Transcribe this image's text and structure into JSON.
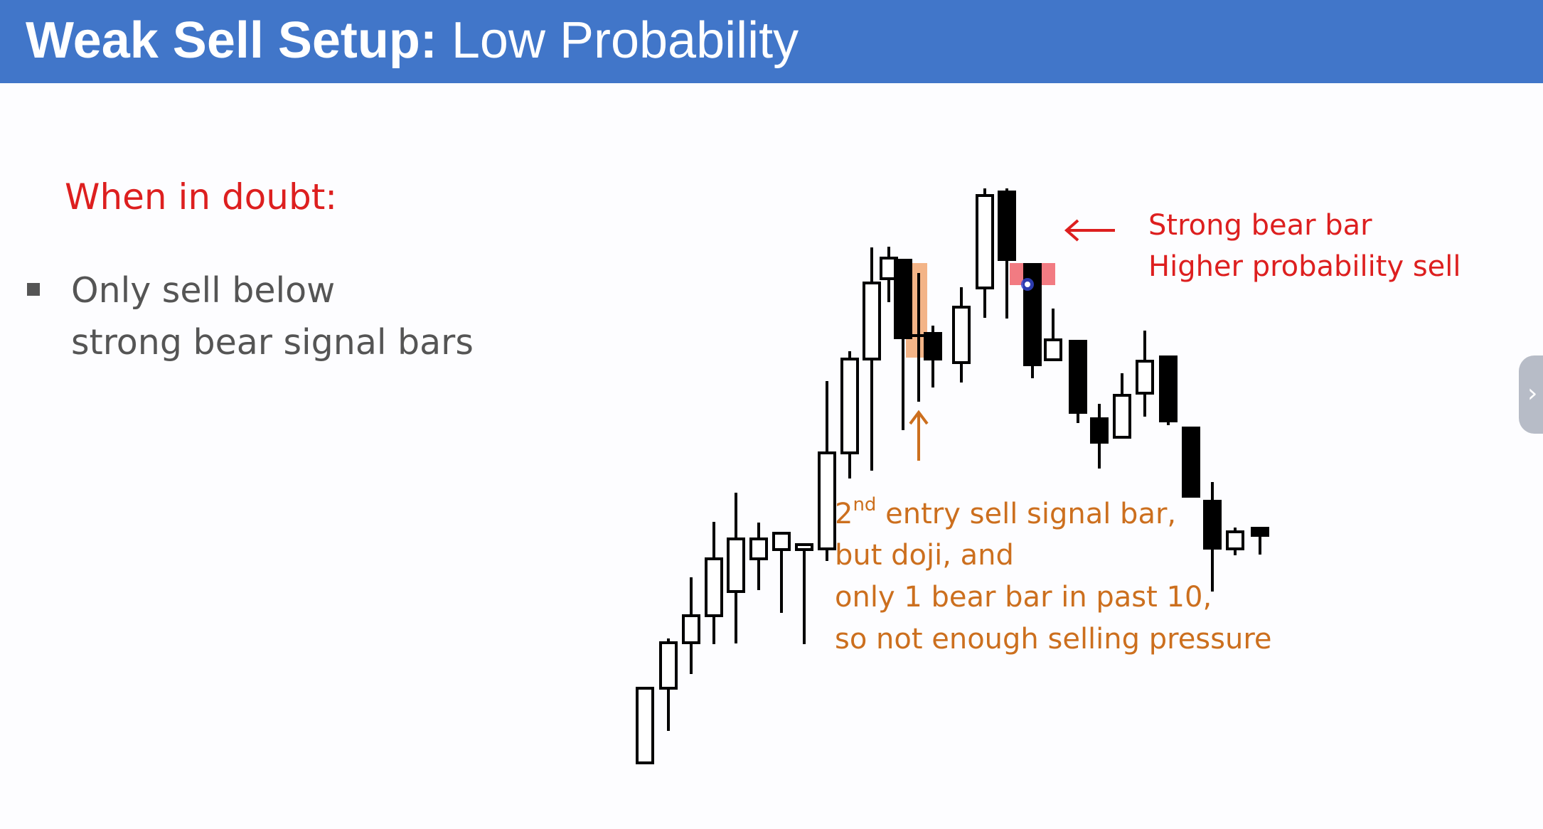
{
  "header": {
    "title_bold": "Weak Sell Setup:",
    "title_rest": " Low Probability"
  },
  "left_panel": {
    "heading": "When in doubt:",
    "bullet_lines": [
      "Only sell below",
      "strong bear signal bars"
    ]
  },
  "annotations": {
    "strong_bear_lines": [
      "Strong bear bar",
      "Higher probability sell"
    ],
    "second_entry_sup": "nd",
    "second_entry_lines": [
      "2",
      " entry sell signal bar,",
      "but doji, and",
      "only 1 bear bar in past 10,",
      "so not enough selling pressure"
    ]
  },
  "colors": {
    "header_bg": "#4176c9",
    "heading_red": "#dd1f1f",
    "annotation_orange": "#cc6f1e",
    "bar_color": "#000000",
    "signal_highlight": "#f3b487",
    "entry_highlight": "#f27b82"
  },
  "icons": {
    "side_tab": "chevron-right-icon",
    "arrow_red": "arrow-left-icon",
    "arrow_orange": "arrow-up-icon",
    "cursor": "cursor-dot-icon"
  },
  "chart_data": {
    "type": "candlestick",
    "price_bars": [
      {
        "o": "low",
        "bear": false
      },
      {
        "bear": false
      },
      {
        "bear": false
      },
      {
        "bear": false
      },
      {
        "bear": false
      },
      {
        "bear": false
      },
      {
        "bear": false
      },
      {
        "bear": false
      },
      {
        "bear": false
      },
      {
        "bear": false
      },
      {
        "bear": false
      },
      {
        "bear": false
      },
      {
        "bear": true
      },
      {
        "bear": false,
        "doji": true
      },
      {
        "bear": true
      },
      {
        "bear": false
      },
      {
        "bear": false
      },
      {
        "bear": true
      },
      {
        "bear": true
      },
      {
        "bear": false
      },
      {
        "bear": true
      },
      {
        "bear": true
      },
      {
        "bear": false
      },
      {
        "bear": false
      },
      {
        "bear": true
      },
      {
        "bear": true
      },
      {
        "bear": true
      },
      {
        "bear": false
      },
      {
        "bear": true
      }
    ]
  }
}
